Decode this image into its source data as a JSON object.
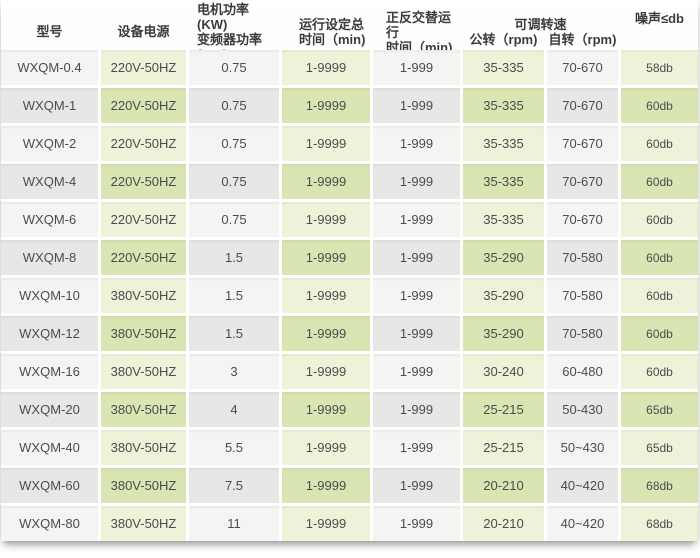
{
  "table": {
    "headers": {
      "model": "型号",
      "power": "设备电源",
      "motor_line1": "电机功率(KW)",
      "motor_line2": "变频器功率(KW)",
      "runtime_line1": "运行设定总",
      "runtime_line2": "时间（min)",
      "alternate_line1": "正反交替运行",
      "alternate_line2": "时间（min)",
      "speed_group": "可调转速",
      "speed_revolution": "公转（rpm)",
      "speed_rotation": "自转（rpm)",
      "noise": "噪声≤db"
    },
    "rows": [
      {
        "model": "WXQM-0.4",
        "power": "220V-50HZ",
        "motor": "0.75",
        "runtime": "1-9999",
        "alternate": "1-999",
        "revolution": "35-335",
        "rotation": "70-670",
        "noise": "58db"
      },
      {
        "model": "WXQM-1",
        "power": "220V-50HZ",
        "motor": "0.75",
        "runtime": "1-9999",
        "alternate": "1-999",
        "revolution": "35-335",
        "rotation": "70-670",
        "noise": "60db"
      },
      {
        "model": "WXQM-2",
        "power": "220V-50HZ",
        "motor": "0.75",
        "runtime": "1-9999",
        "alternate": "1-999",
        "revolution": "35-335",
        "rotation": "70-670",
        "noise": "60db"
      },
      {
        "model": "WXQM-4",
        "power": "220V-50HZ",
        "motor": "0.75",
        "runtime": "1-9999",
        "alternate": "1-999",
        "revolution": "35-335",
        "rotation": "70-670",
        "noise": "60db"
      },
      {
        "model": "WXQM-6",
        "power": "220V-50HZ",
        "motor": "0.75",
        "runtime": "1-9999",
        "alternate": "1-999",
        "revolution": "35-335",
        "rotation": "70-670",
        "noise": "60db"
      },
      {
        "model": "WXQM-8",
        "power": "220V-50HZ",
        "motor": "1.5",
        "runtime": "1-9999",
        "alternate": "1-999",
        "revolution": "35-290",
        "rotation": "70-580",
        "noise": "60db"
      },
      {
        "model": "WXQM-10",
        "power": "380V-50HZ",
        "motor": "1.5",
        "runtime": "1-9999",
        "alternate": "1-999",
        "revolution": "35-290",
        "rotation": "70-580",
        "noise": "60db"
      },
      {
        "model": "WXQM-12",
        "power": "380V-50HZ",
        "motor": "1.5",
        "runtime": "1-9999",
        "alternate": "1-999",
        "revolution": "35-290",
        "rotation": "70-580",
        "noise": "60db"
      },
      {
        "model": "WXQM-16",
        "power": "380V-50HZ",
        "motor": "3",
        "runtime": "1-9999",
        "alternate": "1-999",
        "revolution": "30-240",
        "rotation": "60-480",
        "noise": "60db"
      },
      {
        "model": "WXQM-20",
        "power": "380V-50HZ",
        "motor": "4",
        "runtime": "1-9999",
        "alternate": "1-999",
        "revolution": "25-215",
        "rotation": "50-430",
        "noise": "65db"
      },
      {
        "model": "WXQM-40",
        "power": "380V-50HZ",
        "motor": "5.5",
        "runtime": "1-9999",
        "alternate": "1-999",
        "revolution": "25-215",
        "rotation": "50~430",
        "noise": "65db"
      },
      {
        "model": "WXQM-60",
        "power": "380V-50HZ",
        "motor": "7.5",
        "runtime": "1-9999",
        "alternate": "1-999",
        "revolution": "20-210",
        "rotation": "40~420",
        "noise": "68db"
      },
      {
        "model": "WXQM-80",
        "power": "380V-50HZ",
        "motor": "11",
        "runtime": "1-9999",
        "alternate": "1-999",
        "revolution": "20-210",
        "rotation": "40~420",
        "noise": "68db"
      }
    ]
  },
  "colors": {
    "cell_green_light": "#edf2d9",
    "cell_green_dark": "#d9e5b3",
    "cell_gray_light": "#f4f4f3",
    "cell_gray_dark": "#e7e7e6",
    "text": "#4c4c4c",
    "header_text": "#3b3b3b"
  }
}
